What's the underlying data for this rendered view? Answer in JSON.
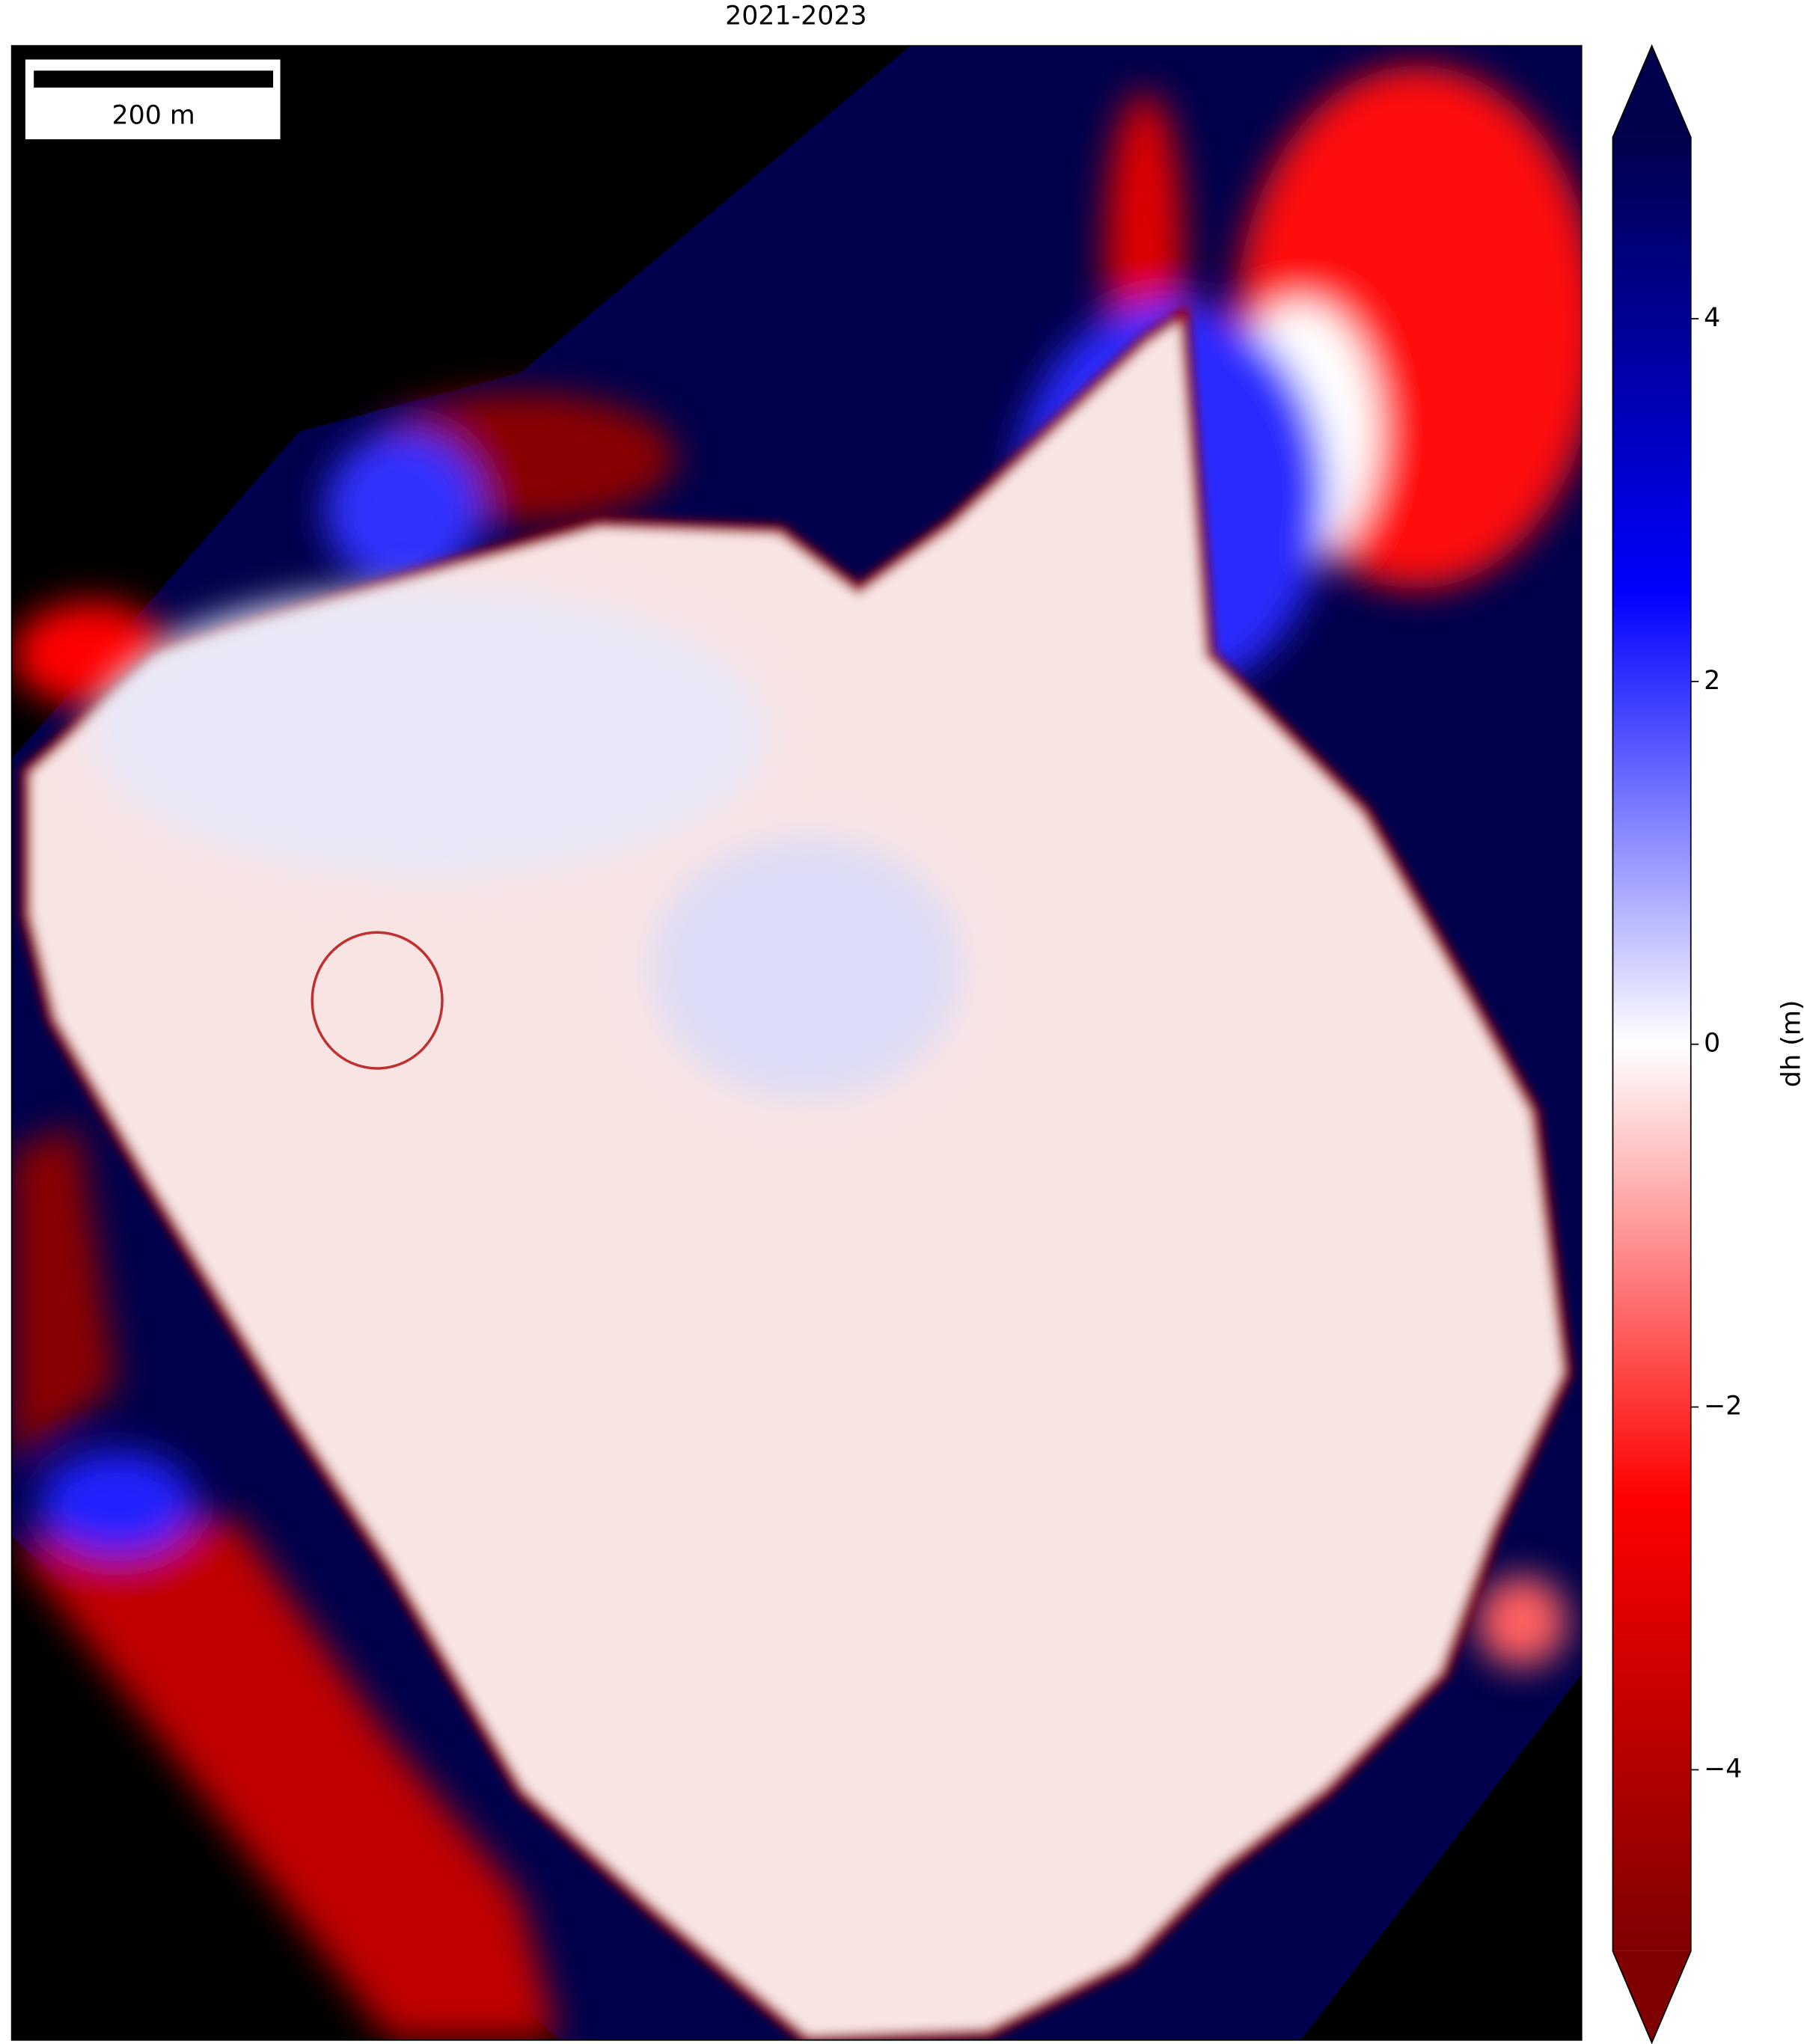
{
  "chart_data": {
    "type": "raster",
    "title": "2021-2023",
    "scale_bar": "200 m",
    "colorbar": {
      "label": "dh (m)",
      "clim": [
        -5,
        5
      ],
      "extend": "both",
      "colors": [
        "#7f0000",
        "#ff0000",
        "#ffffff",
        "#0000ff",
        "#00004c"
      ],
      "ticks": [
        {
          "value": -4,
          "label": "−4"
        },
        {
          "value": -2,
          "label": "−2"
        },
        0,
        2,
        4
      ]
    }
  }
}
